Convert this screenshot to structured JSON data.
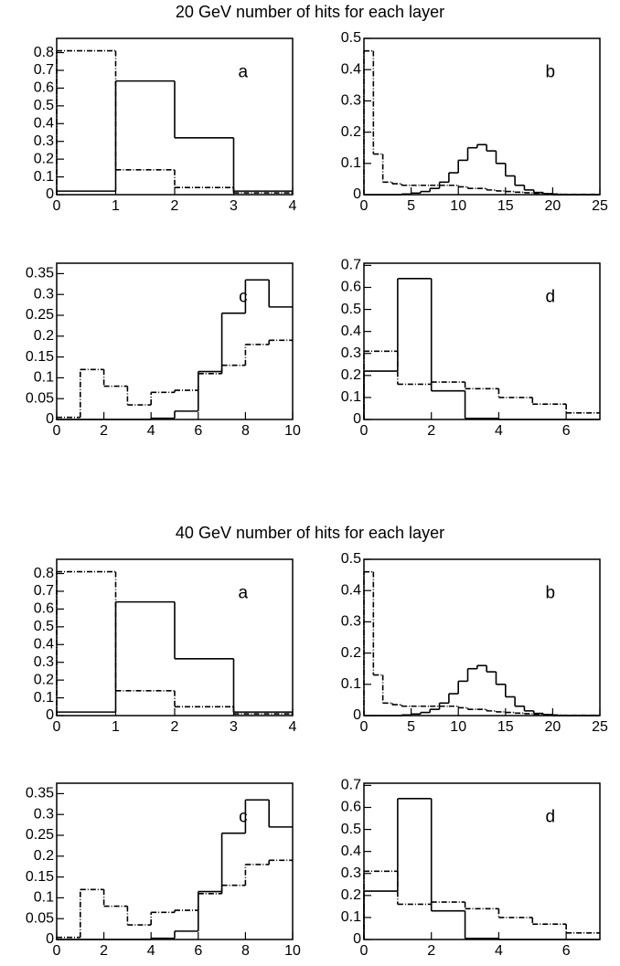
{
  "chart_data": [
    {
      "type": "histogram",
      "title": "20 GeV number of hits for each layer",
      "annotation": "a",
      "bins": [
        0,
        1,
        2,
        3,
        4
      ],
      "xlim": [
        0,
        4
      ],
      "xticks": [
        0,
        1,
        2,
        3,
        4
      ],
      "ylim": [
        0,
        0.88
      ],
      "yticks": [
        0,
        0.1,
        0.2,
        0.3,
        0.4,
        0.5,
        0.6,
        0.7,
        0.8
      ],
      "series": [
        {
          "color": "#000000",
          "style": "solid",
          "values": [
            0.02,
            0.64,
            0.32,
            0.02
          ]
        },
        {
          "color": "#000000",
          "style": "dashdot",
          "values": [
            0.81,
            0.14,
            0.04,
            0.01
          ]
        }
      ]
    },
    {
      "type": "histogram",
      "annotation": "b",
      "bins": [
        0,
        1,
        2,
        3,
        4,
        5,
        6,
        7,
        8,
        9,
        10,
        11,
        12,
        13,
        14,
        15,
        16,
        17,
        18,
        19,
        20,
        21,
        22,
        23,
        24,
        25
      ],
      "xlim": [
        0,
        25
      ],
      "xticks": [
        0,
        5,
        10,
        15,
        20,
        25
      ],
      "ylim": [
        0,
        0.5
      ],
      "yticks": [
        0,
        0.1,
        0.2,
        0.3,
        0.4,
        0.5
      ],
      "series": [
        {
          "color": "#000000",
          "style": "solid",
          "values": [
            0,
            0,
            0,
            0,
            0.002,
            0.005,
            0.01,
            0.02,
            0.04,
            0.07,
            0.11,
            0.15,
            0.16,
            0.14,
            0.1,
            0.06,
            0.03,
            0.015,
            0.007,
            0.003,
            0,
            0,
            0,
            0,
            0
          ]
        },
        {
          "color": "#000000",
          "style": "dashdot",
          "values": [
            0.46,
            0.13,
            0.04,
            0.035,
            0.03,
            0.03,
            0.03,
            0.03,
            0.03,
            0.03,
            0.025,
            0.02,
            0.02,
            0.015,
            0.012,
            0.01,
            0.008,
            0.006,
            0.004,
            0.003,
            0.002,
            0.001,
            0.001,
            0.001,
            0.001
          ]
        }
      ]
    },
    {
      "type": "histogram",
      "annotation": "c",
      "bins": [
        0,
        1,
        2,
        3,
        4,
        5,
        6,
        7,
        8,
        9,
        10
      ],
      "xlim": [
        0,
        10
      ],
      "xticks": [
        0,
        2,
        4,
        6,
        8,
        10
      ],
      "ylim": [
        0,
        0.375
      ],
      "yticks": [
        0,
        0.05,
        0.1,
        0.15,
        0.2,
        0.25,
        0.3,
        0.35
      ],
      "series": [
        {
          "color": "#000000",
          "style": "solid",
          "values": [
            0,
            0,
            0,
            0,
            0.003,
            0.02,
            0.115,
            0.255,
            0.335,
            0.27
          ]
        },
        {
          "color": "#000000",
          "style": "dashdot",
          "values": [
            0.005,
            0.12,
            0.08,
            0.035,
            0.065,
            0.07,
            0.11,
            0.13,
            0.18,
            0.19
          ]
        }
      ]
    },
    {
      "type": "histogram",
      "annotation": "d",
      "bins": [
        0,
        1,
        2,
        3,
        4,
        5,
        6,
        7
      ],
      "xlim": [
        0,
        7
      ],
      "xticks": [
        0,
        2,
        4,
        6
      ],
      "ylim": [
        0,
        0.71
      ],
      "yticks": [
        0,
        0.1,
        0.2,
        0.3,
        0.4,
        0.5,
        0.6,
        0.7
      ],
      "series": [
        {
          "color": "#000000",
          "style": "solid",
          "values": [
            0.22,
            0.64,
            0.13,
            0.005,
            0,
            0,
            0
          ]
        },
        {
          "color": "#000000",
          "style": "dashdot",
          "values": [
            0.31,
            0.16,
            0.17,
            0.14,
            0.1,
            0.07,
            0.03
          ]
        }
      ]
    },
    {
      "type": "histogram",
      "title": "40 GeV number of hits for each layer",
      "annotation": "a",
      "bins": [
        0,
        1,
        2,
        3,
        4
      ],
      "xlim": [
        0,
        4
      ],
      "xticks": [
        0,
        1,
        2,
        3,
        4
      ],
      "ylim": [
        0,
        0.88
      ],
      "yticks": [
        0,
        0.1,
        0.2,
        0.3,
        0.4,
        0.5,
        0.6,
        0.7,
        0.8
      ],
      "series": [
        {
          "color": "#000000",
          "style": "solid",
          "values": [
            0.02,
            0.64,
            0.32,
            0.02
          ]
        },
        {
          "color": "#000000",
          "style": "dashdot",
          "values": [
            0.81,
            0.14,
            0.05,
            0.01
          ]
        }
      ]
    },
    {
      "type": "histogram",
      "annotation": "b",
      "bins": [
        0,
        1,
        2,
        3,
        4,
        5,
        6,
        7,
        8,
        9,
        10,
        11,
        12,
        13,
        14,
        15,
        16,
        17,
        18,
        19,
        20,
        21,
        22,
        23,
        24,
        25
      ],
      "xlim": [
        0,
        25
      ],
      "xticks": [
        0,
        5,
        10,
        15,
        20,
        25
      ],
      "ylim": [
        0,
        0.5
      ],
      "yticks": [
        0,
        0.1,
        0.2,
        0.3,
        0.4,
        0.5
      ],
      "series": [
        {
          "color": "#000000",
          "style": "solid",
          "values": [
            0,
            0,
            0,
            0,
            0.002,
            0.005,
            0.01,
            0.02,
            0.04,
            0.07,
            0.11,
            0.15,
            0.16,
            0.14,
            0.1,
            0.06,
            0.03,
            0.015,
            0.007,
            0.003,
            0,
            0,
            0,
            0,
            0
          ]
        },
        {
          "color": "#000000",
          "style": "dashdot",
          "values": [
            0.46,
            0.13,
            0.04,
            0.035,
            0.03,
            0.03,
            0.03,
            0.03,
            0.03,
            0.03,
            0.025,
            0.02,
            0.02,
            0.015,
            0.012,
            0.01,
            0.008,
            0.006,
            0.004,
            0.003,
            0.002,
            0.001,
            0.001,
            0.001,
            0.001
          ]
        }
      ]
    },
    {
      "type": "histogram",
      "annotation": "c",
      "bins": [
        0,
        1,
        2,
        3,
        4,
        5,
        6,
        7,
        8,
        9,
        10
      ],
      "xlim": [
        0,
        10
      ],
      "xticks": [
        0,
        2,
        4,
        6,
        8,
        10
      ],
      "ylim": [
        0,
        0.375
      ],
      "yticks": [
        0,
        0.05,
        0.1,
        0.15,
        0.2,
        0.25,
        0.3,
        0.35
      ],
      "series": [
        {
          "color": "#000000",
          "style": "solid",
          "values": [
            0,
            0,
            0,
            0,
            0.003,
            0.02,
            0.115,
            0.255,
            0.335,
            0.27
          ]
        },
        {
          "color": "#000000",
          "style": "dashdot",
          "values": [
            0.005,
            0.12,
            0.08,
            0.035,
            0.065,
            0.07,
            0.11,
            0.13,
            0.18,
            0.19
          ]
        }
      ]
    },
    {
      "type": "histogram",
      "annotation": "d",
      "bins": [
        0,
        1,
        2,
        3,
        4,
        5,
        6,
        7
      ],
      "xlim": [
        0,
        7
      ],
      "xticks": [
        0,
        2,
        4,
        6
      ],
      "ylim": [
        0,
        0.71
      ],
      "yticks": [
        0,
        0.1,
        0.2,
        0.3,
        0.4,
        0.5,
        0.6,
        0.7
      ],
      "series": [
        {
          "color": "#000000",
          "style": "solid",
          "values": [
            0.22,
            0.64,
            0.13,
            0.005,
            0,
            0,
            0
          ]
        },
        {
          "color": "#000000",
          "style": "dashdot",
          "values": [
            0.31,
            0.16,
            0.17,
            0.14,
            0.1,
            0.07,
            0.03
          ]
        }
      ]
    }
  ]
}
